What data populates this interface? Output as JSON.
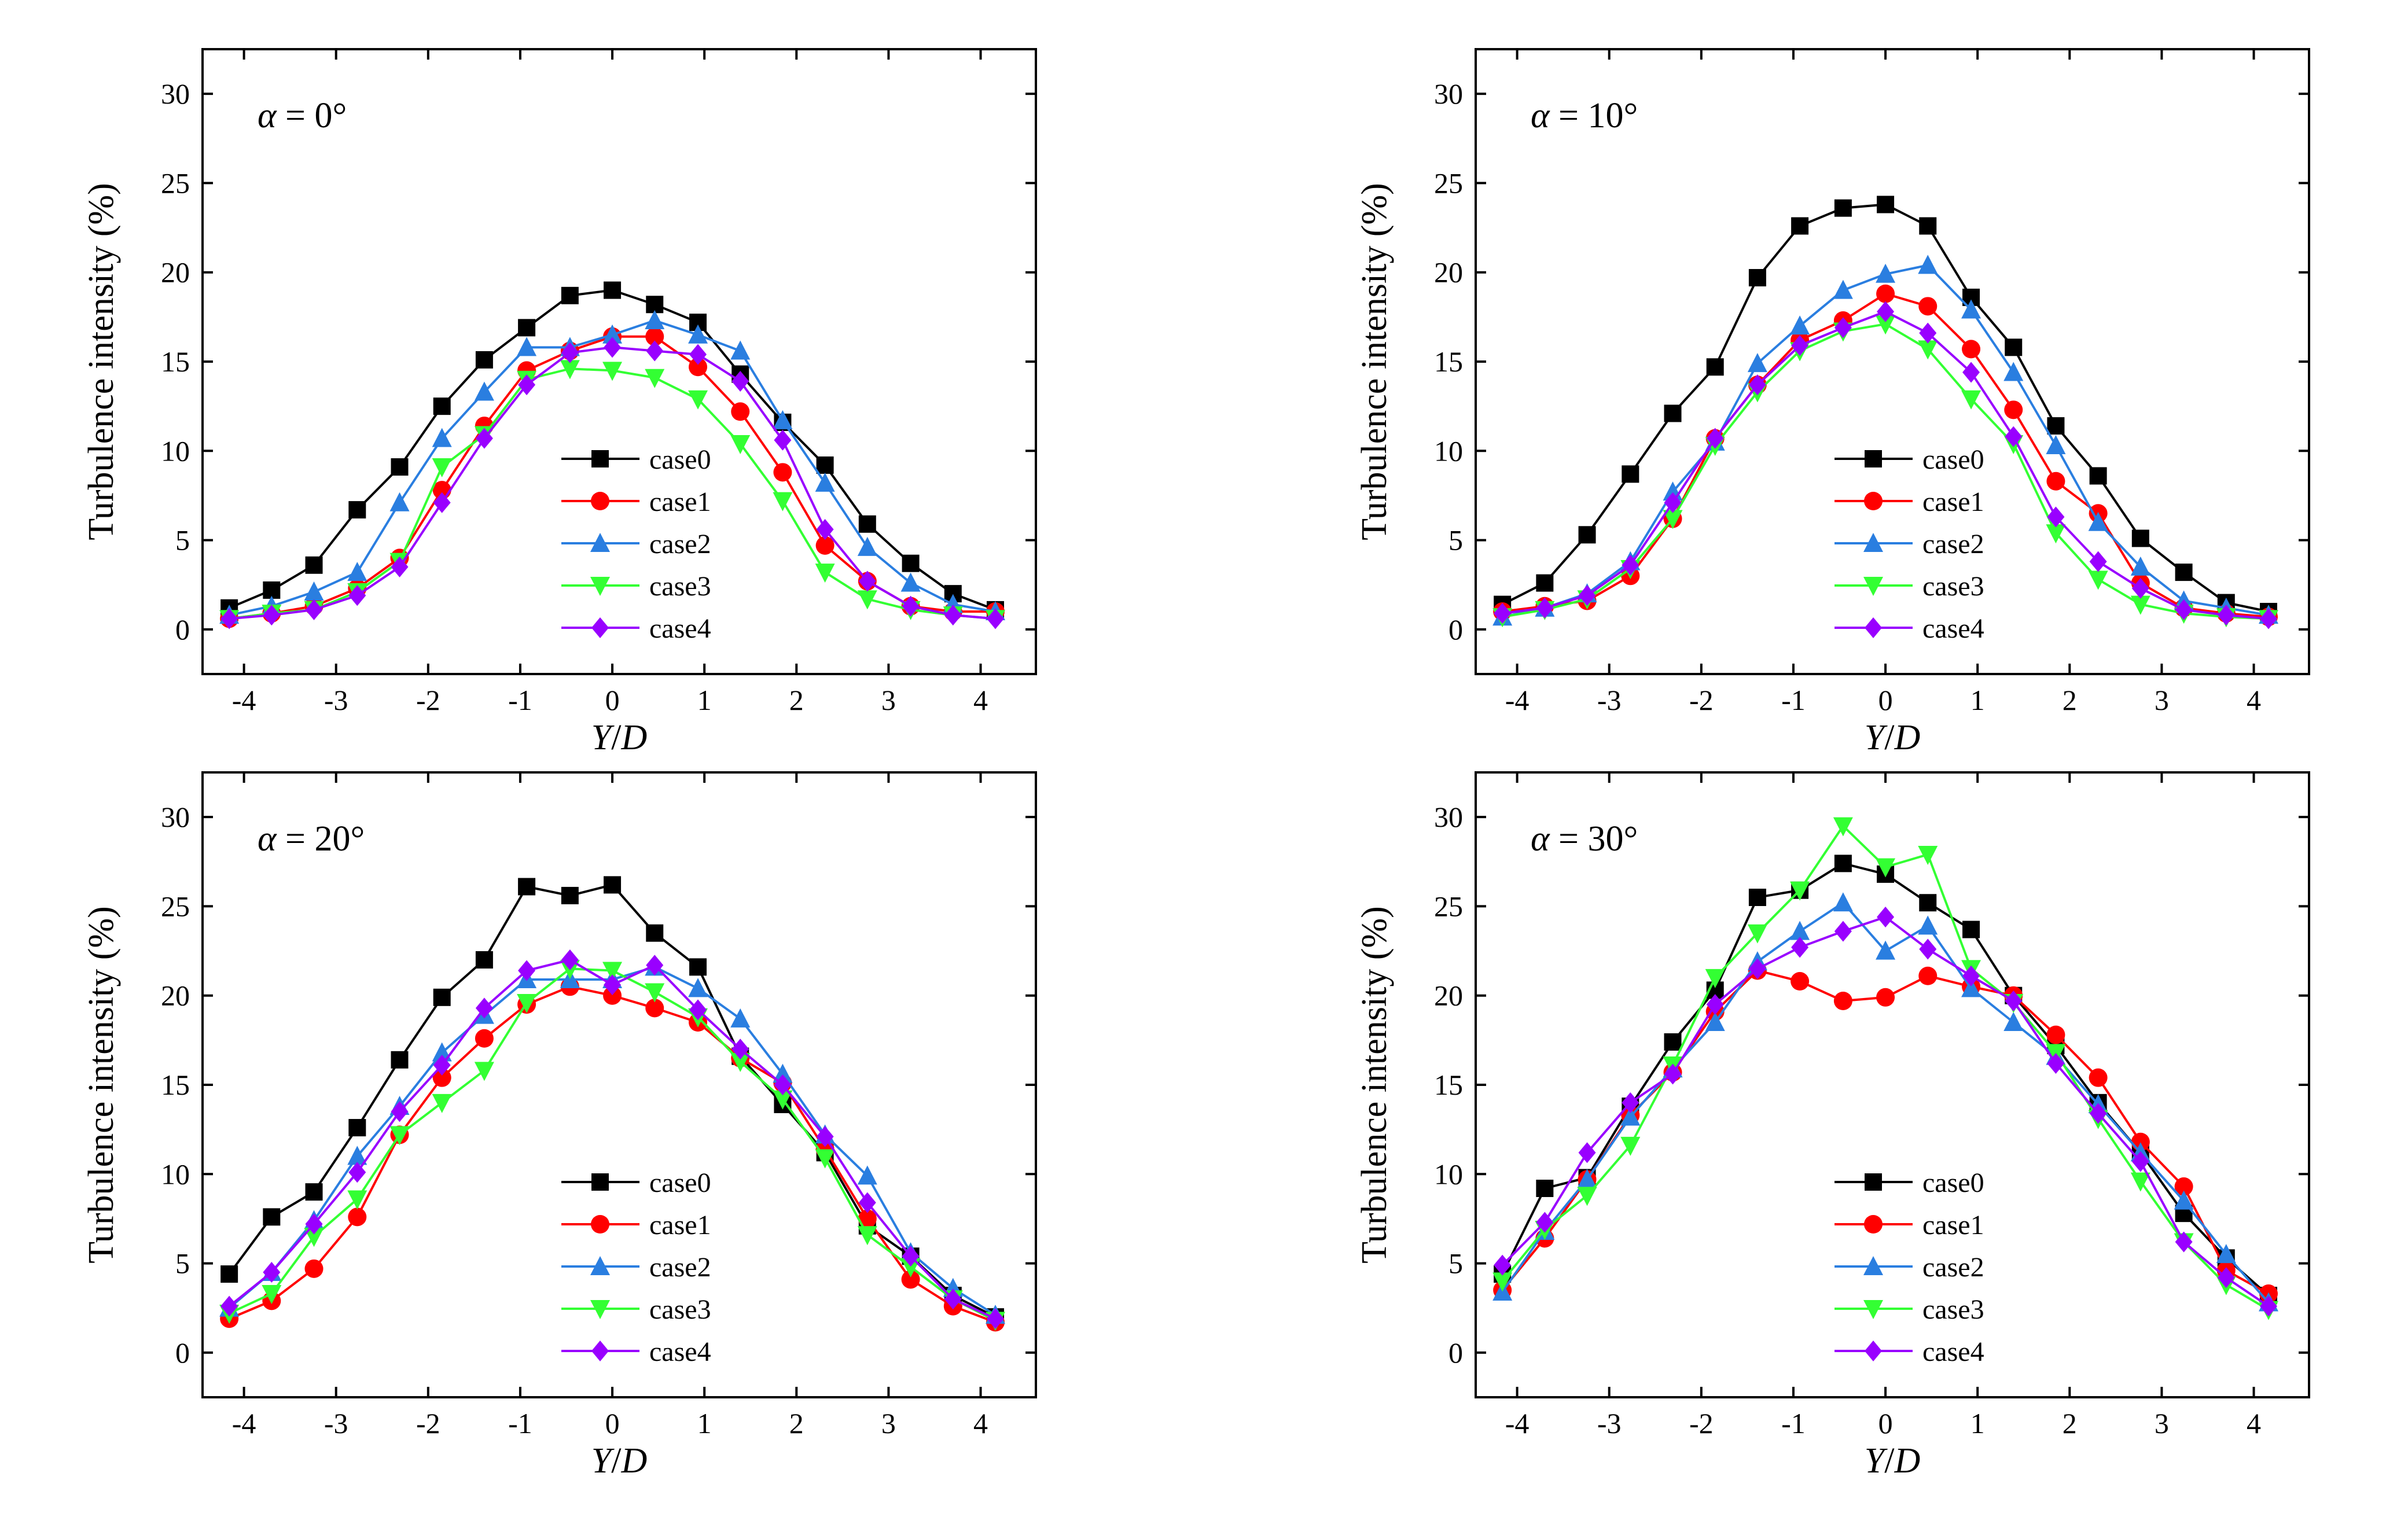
{
  "figure": {
    "background": "#ffffff"
  },
  "styles": {
    "case0": {
      "color": "#000000",
      "marker": "square"
    },
    "case1": {
      "color": "#ff0000",
      "marker": "circle"
    },
    "case2": {
      "color": "#2a7ee0",
      "marker": "triangle-up"
    },
    "case3": {
      "color": "#33ff33",
      "marker": "triangle-down"
    },
    "case4": {
      "color": "#9900ff",
      "marker": "diamond"
    }
  },
  "chart_data": [
    {
      "type": "line",
      "title_symbol": "α",
      "title_rest": " = 0°",
      "xlabel_italic_1": "Y",
      "xlabel_sep": "/",
      "xlabel_italic_2": "D",
      "ylabel": "Turbulence intensity (%)",
      "xlim": [
        -4.45,
        4.6
      ],
      "ylim": [
        -2.5,
        32.5
      ],
      "xticks": [
        -4,
        -3,
        -2,
        -1,
        0,
        1,
        2,
        3,
        4
      ],
      "xtick_labels": [
        "-4",
        "-3",
        "-2",
        "-1",
        "0",
        "1",
        "2",
        "3",
        "4"
      ],
      "yticks": [
        0,
        5,
        10,
        15,
        20,
        25,
        30
      ],
      "ytick_labels": [
        "0",
        "5",
        "10",
        "15",
        "20",
        "25",
        "30"
      ],
      "legend": [
        "case0",
        "case1",
        "case2",
        "case3",
        "case4"
      ],
      "x": [
        -4.16,
        -3.7,
        -3.24,
        -2.77,
        -2.31,
        -1.85,
        -1.39,
        -0.93,
        -0.46,
        0,
        0.46,
        0.93,
        1.39,
        1.85,
        2.31,
        2.77,
        3.24,
        3.7,
        4.16
      ],
      "series": [
        {
          "name": "case0",
          "values": [
            1.2,
            2.2,
            3.6,
            6.7,
            9.1,
            12.5,
            15.1,
            16.9,
            18.7,
            19.0,
            18.2,
            17.2,
            14.3,
            11.6,
            9.2,
            5.9,
            3.7,
            2.0,
            1.1
          ]
        },
        {
          "name": "case1",
          "values": [
            0.6,
            0.9,
            1.3,
            2.3,
            4.0,
            7.8,
            11.4,
            14.5,
            15.6,
            16.4,
            16.4,
            14.7,
            12.2,
            8.8,
            4.7,
            2.7,
            1.3,
            1.0,
            1.0
          ]
        },
        {
          "name": "case2",
          "values": [
            0.8,
            1.3,
            2.1,
            3.2,
            7.1,
            10.7,
            13.3,
            15.8,
            15.8,
            16.5,
            17.3,
            16.5,
            15.6,
            11.7,
            8.2,
            4.6,
            2.6,
            1.4,
            1.0
          ]
        },
        {
          "name": "case3",
          "values": [
            0.6,
            0.9,
            1.1,
            2.1,
            3.8,
            9.1,
            10.9,
            14.0,
            14.6,
            14.5,
            14.1,
            12.9,
            10.4,
            7.2,
            3.2,
            1.7,
            1.1,
            0.8,
            0.6
          ]
        },
        {
          "name": "case4",
          "values": [
            0.6,
            0.8,
            1.1,
            1.9,
            3.5,
            7.1,
            10.7,
            13.7,
            15.5,
            15.8,
            15.6,
            15.4,
            13.9,
            10.6,
            5.6,
            2.7,
            1.3,
            0.8,
            0.6
          ]
        }
      ]
    },
    {
      "type": "line",
      "title_symbol": "α",
      "title_rest": " = 10°",
      "xlabel_italic_1": "Y",
      "xlabel_sep": "/",
      "xlabel_italic_2": "D",
      "ylabel": "Turbulence intensity (%)",
      "xlim": [
        -4.45,
        4.6
      ],
      "ylim": [
        -2.5,
        32.5
      ],
      "xticks": [
        -4,
        -3,
        -2,
        -1,
        0,
        1,
        2,
        3,
        4
      ],
      "xtick_labels": [
        "-4",
        "-3",
        "-2",
        "-1",
        "0",
        "1",
        "2",
        "3",
        "4"
      ],
      "yticks": [
        0,
        5,
        10,
        15,
        20,
        25,
        30
      ],
      "ytick_labels": [
        "0",
        "5",
        "10",
        "15",
        "20",
        "25",
        "30"
      ],
      "legend": [
        "case0",
        "case1",
        "case2",
        "case3",
        "case4"
      ],
      "x": [
        -4.16,
        -3.7,
        -3.24,
        -2.77,
        -2.31,
        -1.85,
        -1.39,
        -0.93,
        -0.46,
        0,
        0.46,
        0.93,
        1.39,
        1.85,
        2.31,
        2.77,
        3.24,
        3.7,
        4.16
      ],
      "series": [
        {
          "name": "case0",
          "values": [
            1.4,
            2.6,
            5.3,
            8.7,
            12.1,
            14.7,
            19.7,
            22.6,
            23.6,
            23.8,
            22.6,
            18.6,
            15.8,
            11.4,
            8.6,
            5.1,
            3.2,
            1.5,
            1.0
          ]
        },
        {
          "name": "case1",
          "values": [
            1.0,
            1.3,
            1.6,
            3.0,
            6.2,
            10.7,
            13.7,
            16.2,
            17.3,
            18.8,
            18.1,
            15.7,
            12.3,
            8.3,
            6.5,
            2.6,
            1.2,
            0.9,
            0.7
          ]
        },
        {
          "name": "case2",
          "values": [
            0.7,
            1.2,
            2.0,
            3.8,
            7.7,
            10.5,
            14.9,
            17.0,
            19.0,
            19.9,
            20.4,
            17.9,
            14.4,
            10.3,
            6.0,
            3.5,
            1.6,
            1.2,
            0.8
          ]
        },
        {
          "name": "case3",
          "values": [
            0.7,
            1.1,
            1.7,
            3.4,
            6.2,
            10.3,
            13.3,
            15.6,
            16.7,
            17.1,
            15.7,
            12.9,
            10.4,
            5.4,
            2.8,
            1.4,
            0.9,
            0.7,
            0.6
          ]
        },
        {
          "name": "case4",
          "values": [
            0.9,
            1.2,
            1.9,
            3.6,
            7.1,
            10.7,
            13.7,
            15.9,
            16.9,
            17.8,
            16.6,
            14.4,
            10.8,
            6.3,
            3.8,
            2.3,
            1.1,
            0.8,
            0.6
          ]
        }
      ]
    },
    {
      "type": "line",
      "title_symbol": "α",
      "title_rest": " = 20°",
      "xlabel_italic_1": "Y",
      "xlabel_sep": "/",
      "xlabel_italic_2": "D",
      "ylabel": "Turbulence intensity (%)",
      "xlim": [
        -4.45,
        4.6
      ],
      "ylim": [
        -2.5,
        32.5
      ],
      "xticks": [
        -4,
        -3,
        -2,
        -1,
        0,
        1,
        2,
        3,
        4
      ],
      "xtick_labels": [
        "-4",
        "-3",
        "-2",
        "-1",
        "0",
        "1",
        "2",
        "3",
        "4"
      ],
      "yticks": [
        0,
        5,
        10,
        15,
        20,
        25,
        30
      ],
      "ytick_labels": [
        "0",
        "5",
        "10",
        "15",
        "20",
        "25",
        "30"
      ],
      "legend": [
        "case0",
        "case1",
        "case2",
        "case3",
        "case4"
      ],
      "x": [
        -4.16,
        -3.7,
        -3.24,
        -2.77,
        -2.31,
        -1.85,
        -1.39,
        -0.93,
        -0.46,
        0,
        0.46,
        0.93,
        1.39,
        1.85,
        2.31,
        2.77,
        3.24,
        3.7,
        4.16
      ],
      "series": [
        {
          "name": "case0",
          "values": [
            4.4,
            7.6,
            9.0,
            12.6,
            16.4,
            19.9,
            22.0,
            26.1,
            25.6,
            26.2,
            23.5,
            21.6,
            16.6,
            13.9,
            11.2,
            7.1,
            5.4,
            3.2,
            2.0
          ]
        },
        {
          "name": "case1",
          "values": [
            1.9,
            2.9,
            4.7,
            7.6,
            12.2,
            15.4,
            17.6,
            19.5,
            20.5,
            20.0,
            19.3,
            18.5,
            16.5,
            15.1,
            11.4,
            7.5,
            4.1,
            2.6,
            1.7
          ]
        },
        {
          "name": "case2",
          "values": [
            2.5,
            4.5,
            7.4,
            11.0,
            13.8,
            16.8,
            18.9,
            20.9,
            20.9,
            20.9,
            21.6,
            20.4,
            18.7,
            15.6,
            12.2,
            9.9,
            5.6,
            3.6,
            2.1
          ]
        },
        {
          "name": "case3",
          "values": [
            2.2,
            3.3,
            6.5,
            8.6,
            12.2,
            14.0,
            15.8,
            19.6,
            21.5,
            21.4,
            20.2,
            18.8,
            16.3,
            14.2,
            10.9,
            6.6,
            4.8,
            3.0,
            1.8
          ]
        },
        {
          "name": "case4",
          "values": [
            2.6,
            4.5,
            7.2,
            10.1,
            13.5,
            16.1,
            19.3,
            21.4,
            22.0,
            20.6,
            21.7,
            19.2,
            17.0,
            15.0,
            12.1,
            8.4,
            5.4,
            3.0,
            1.9
          ]
        }
      ]
    },
    {
      "type": "line",
      "title_symbol": "α",
      "title_rest": " = 30°",
      "xlabel_italic_1": "Y",
      "xlabel_sep": "/",
      "xlabel_italic_2": "D",
      "ylabel": "Turbulence intensity (%)",
      "xlim": [
        -4.45,
        4.6
      ],
      "ylim": [
        -2.5,
        32.5
      ],
      "xticks": [
        -4,
        -3,
        -2,
        -1,
        0,
        1,
        2,
        3,
        4
      ],
      "xtick_labels": [
        "-4",
        "-3",
        "-2",
        "-1",
        "0",
        "1",
        "2",
        "3",
        "4"
      ],
      "yticks": [
        0,
        5,
        10,
        15,
        20,
        25,
        30
      ],
      "ytick_labels": [
        "0",
        "5",
        "10",
        "15",
        "20",
        "25",
        "30"
      ],
      "legend": [
        "case0",
        "case1",
        "case2",
        "case3",
        "case4"
      ],
      "x": [
        -4.16,
        -3.7,
        -3.24,
        -2.77,
        -2.31,
        -1.85,
        -1.39,
        -0.93,
        -0.46,
        0,
        0.46,
        0.93,
        1.39,
        1.85,
        2.31,
        2.77,
        3.24,
        3.7,
        4.16
      ],
      "series": [
        {
          "name": "case0",
          "values": [
            4.4,
            9.2,
            9.8,
            13.8,
            17.4,
            20.3,
            25.5,
            25.9,
            27.4,
            26.8,
            25.2,
            23.7,
            20.0,
            17.2,
            14.0,
            11.2,
            7.8,
            5.3,
            3.2
          ]
        },
        {
          "name": "case1",
          "values": [
            3.5,
            6.4,
            9.7,
            13.3,
            15.7,
            19.1,
            21.4,
            20.8,
            19.7,
            19.9,
            21.1,
            20.5,
            20.0,
            17.8,
            15.4,
            11.8,
            9.3,
            4.6,
            3.3
          ]
        },
        {
          "name": "case2",
          "values": [
            3.4,
            6.8,
            9.7,
            13.2,
            15.9,
            18.5,
            21.9,
            23.6,
            25.2,
            22.5,
            23.9,
            20.4,
            18.5,
            16.6,
            13.9,
            11.2,
            8.5,
            5.5,
            2.8
          ]
        },
        {
          "name": "case3",
          "values": [
            4.0,
            6.9,
            8.8,
            11.6,
            16.1,
            21.0,
            23.5,
            25.9,
            29.5,
            27.2,
            27.9,
            21.5,
            19.6,
            16.8,
            13.1,
            9.6,
            6.2,
            3.8,
            2.4
          ]
        },
        {
          "name": "case4",
          "values": [
            4.9,
            7.3,
            11.2,
            14.0,
            15.6,
            19.5,
            21.5,
            22.7,
            23.6,
            24.4,
            22.6,
            21.1,
            19.7,
            16.2,
            13.4,
            10.7,
            6.2,
            4.2,
            2.6
          ]
        }
      ]
    }
  ]
}
